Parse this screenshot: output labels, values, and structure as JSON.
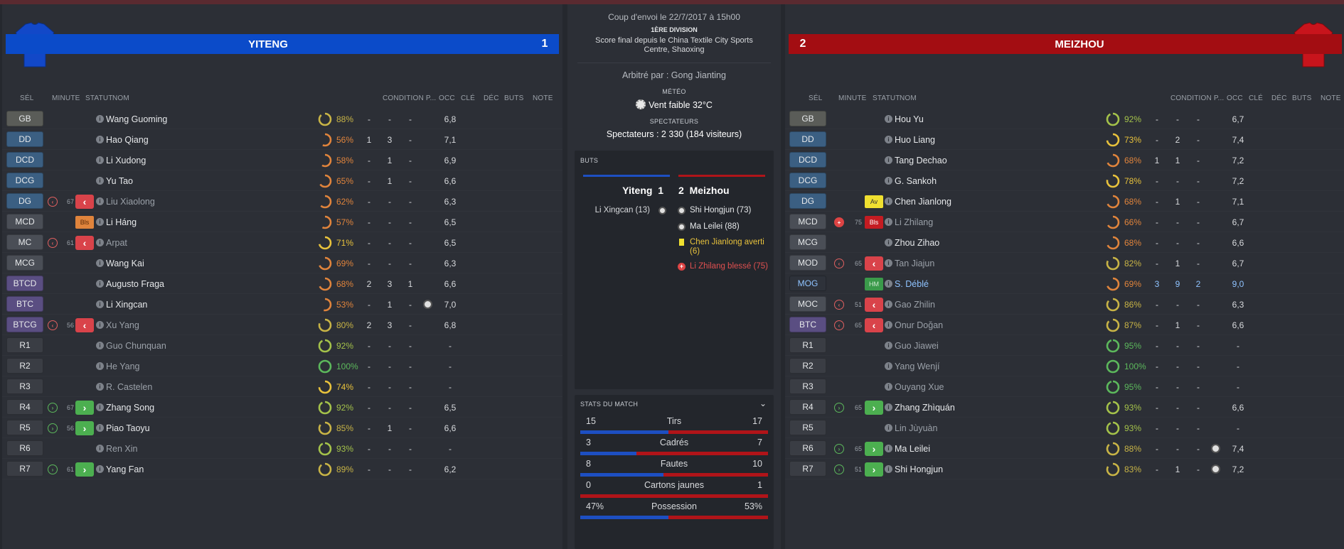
{
  "home": {
    "name": "YITENG",
    "score": "1",
    "banner_color": "#0b4bc9",
    "headers": {
      "sel": "SÉL",
      "minute": "MINUTE",
      "statut": "STATUT",
      "nom": "NOM",
      "condition": "CONDITION P...",
      "occ": "OCC",
      "cle": "CLÉ",
      "dec": "DÉC",
      "buts": "BUTS",
      "note": "NOTE"
    },
    "players": [
      {
        "pos": "GB",
        "pcolor": "#5a5c58",
        "name": "Wang Guoming",
        "cond": "88%",
        "ccolor": "#c8b446",
        "cfrac": 0.88,
        "occ": "-",
        "cle": "-",
        "dec": "-",
        "note": "6,8",
        "dim": false,
        "mark": "",
        "min": "",
        "status": "",
        "tag": "",
        "goal": false
      },
      {
        "pos": "DD",
        "pcolor": "#3b5f82",
        "name": "Hao Qiang",
        "cond": "56%",
        "ccolor": "#e0843c",
        "cfrac": 0.56,
        "occ": "1",
        "cle": "3",
        "dec": "-",
        "note": "7,1",
        "dim": false,
        "mark": "",
        "min": "",
        "status": "",
        "tag": "",
        "goal": false
      },
      {
        "pos": "DCD",
        "pcolor": "#3b5f82",
        "name": "Li Xudong",
        "cond": "58%",
        "ccolor": "#e0843c",
        "cfrac": 0.58,
        "occ": "-",
        "cle": "1",
        "dec": "-",
        "note": "6,9",
        "dim": false,
        "mark": "",
        "min": "",
        "status": "",
        "tag": "",
        "goal": false
      },
      {
        "pos": "DCG",
        "pcolor": "#3b5f82",
        "name": "Yu Tao",
        "cond": "65%",
        "ccolor": "#e0843c",
        "cfrac": 0.65,
        "occ": "-",
        "cle": "1",
        "dec": "-",
        "note": "6,6",
        "dim": false,
        "mark": "",
        "min": "",
        "status": "",
        "tag": "",
        "goal": false
      },
      {
        "pos": "DG",
        "pcolor": "#3b5f82",
        "name": "Liu Xiaolong",
        "cond": "62%",
        "ccolor": "#e0843c",
        "cfrac": 0.62,
        "occ": "-",
        "cle": "-",
        "dec": "-",
        "note": "6,3",
        "dim": true,
        "mark": "out",
        "min": "67",
        "status": "out",
        "tag": "",
        "goal": false
      },
      {
        "pos": "MCD",
        "pcolor": "#4a4e56",
        "name": "Li Háng",
        "cond": "57%",
        "ccolor": "#e0843c",
        "cfrac": 0.57,
        "occ": "-",
        "cle": "-",
        "dec": "-",
        "note": "6,5",
        "dim": false,
        "mark": "",
        "min": "",
        "status": "",
        "tag": "Bls",
        "goal": false
      },
      {
        "pos": "MC",
        "pcolor": "#4a4e56",
        "name": "Arpat",
        "cond": "71%",
        "ccolor": "#e8c23c",
        "cfrac": 0.71,
        "occ": "-",
        "cle": "-",
        "dec": "-",
        "note": "6,5",
        "dim": true,
        "mark": "out",
        "min": "61",
        "status": "out",
        "tag": "",
        "goal": false
      },
      {
        "pos": "MCG",
        "pcolor": "#4a4e56",
        "name": "Wang Kai",
        "cond": "69%",
        "ccolor": "#e0843c",
        "cfrac": 0.69,
        "occ": "-",
        "cle": "-",
        "dec": "-",
        "note": "6,3",
        "dim": false,
        "mark": "",
        "min": "",
        "status": "",
        "tag": "",
        "goal": false
      },
      {
        "pos": "BTCD",
        "pcolor": "#5a4e82",
        "name": "Augusto Fraga",
        "cond": "68%",
        "ccolor": "#e0843c",
        "cfrac": 0.68,
        "occ": "2",
        "cle": "3",
        "dec": "1",
        "note": "6,6",
        "dim": false,
        "mark": "",
        "min": "",
        "status": "",
        "tag": "",
        "goal": false
      },
      {
        "pos": "BTC",
        "pcolor": "#5a4e82",
        "name": "Li Xingcan",
        "cond": "53%",
        "ccolor": "#e0843c",
        "cfrac": 0.53,
        "occ": "-",
        "cle": "1",
        "dec": "-",
        "note": "7,0",
        "dim": false,
        "mark": "",
        "min": "",
        "status": "",
        "tag": "",
        "goal": true
      },
      {
        "pos": "BTCG",
        "pcolor": "#5a4e82",
        "name": "Xu Yang",
        "cond": "80%",
        "ccolor": "#c8b446",
        "cfrac": 0.8,
        "occ": "2",
        "cle": "3",
        "dec": "-",
        "note": "6,8",
        "dim": true,
        "mark": "out",
        "min": "56",
        "status": "out",
        "tag": "",
        "goal": false
      },
      {
        "pos": "R1",
        "pcolor": "#3a3d44",
        "name": "Guo Chunquan",
        "cond": "92%",
        "ccolor": "#a4c24a",
        "cfrac": 0.92,
        "occ": "-",
        "cle": "-",
        "dec": "-",
        "note": "-",
        "dim": true,
        "mark": "",
        "min": "",
        "status": "",
        "tag": "",
        "goal": false
      },
      {
        "pos": "R2",
        "pcolor": "#3a3d44",
        "name": "He Yang",
        "cond": "100%",
        "ccolor": "#5cb85c",
        "cfrac": 1.0,
        "occ": "-",
        "cle": "-",
        "dec": "-",
        "note": "-",
        "dim": true,
        "mark": "",
        "min": "",
        "status": "",
        "tag": "",
        "goal": false
      },
      {
        "pos": "R3",
        "pcolor": "#3a3d44",
        "name": "R. Castelen",
        "cond": "74%",
        "ccolor": "#e8c23c",
        "cfrac": 0.74,
        "occ": "-",
        "cle": "-",
        "dec": "-",
        "note": "-",
        "dim": true,
        "mark": "",
        "min": "",
        "status": "",
        "tag": "",
        "goal": false
      },
      {
        "pos": "R4",
        "pcolor": "#3a3d44",
        "name": "Zhang Song",
        "cond": "92%",
        "ccolor": "#a4c24a",
        "cfrac": 0.92,
        "occ": "-",
        "cle": "-",
        "dec": "-",
        "note": "6,5",
        "dim": false,
        "mark": "in",
        "min": "67",
        "status": "in",
        "tag": "",
        "goal": false
      },
      {
        "pos": "R5",
        "pcolor": "#3a3d44",
        "name": "Piao Taoyu",
        "cond": "85%",
        "ccolor": "#c8b446",
        "cfrac": 0.85,
        "occ": "-",
        "cle": "1",
        "dec": "-",
        "note": "6,6",
        "dim": false,
        "mark": "in",
        "min": "56",
        "status": "in",
        "tag": "",
        "goal": false
      },
      {
        "pos": "R6",
        "pcolor": "#3a3d44",
        "name": "Ren Xin",
        "cond": "93%",
        "ccolor": "#a4c24a",
        "cfrac": 0.93,
        "occ": "-",
        "cle": "-",
        "dec": "-",
        "note": "-",
        "dim": true,
        "mark": "",
        "min": "",
        "status": "",
        "tag": "",
        "goal": false
      },
      {
        "pos": "R7",
        "pcolor": "#3a3d44",
        "name": "Yang Fan",
        "cond": "89%",
        "ccolor": "#c8b446",
        "cfrac": 0.89,
        "occ": "-",
        "cle": "-",
        "dec": "-",
        "note": "6,2",
        "dim": false,
        "mark": "in",
        "min": "61",
        "status": "in",
        "tag": "",
        "goal": false
      }
    ]
  },
  "away": {
    "name": "MEIZHOU",
    "score": "2",
    "banner_color": "#a30d12",
    "headers": {
      "sel": "SÉL",
      "minute": "MINUTE",
      "statut": "STATUT",
      "nom": "NOM",
      "condition": "CONDITION P...",
      "occ": "OCC",
      "cle": "CLÉ",
      "dec": "DÉC",
      "buts": "BUTS",
      "note": "NOTE"
    },
    "players": [
      {
        "pos": "GB",
        "pcolor": "#5a5c58",
        "name": "Hou Yu",
        "cond": "92%",
        "ccolor": "#a4c24a",
        "cfrac": 0.92,
        "occ": "-",
        "cle": "-",
        "dec": "-",
        "note": "6,7",
        "dim": false,
        "mark": "",
        "min": "",
        "status": "",
        "tag": "",
        "goal": false,
        "hl": false
      },
      {
        "pos": "DD",
        "pcolor": "#3b5f82",
        "name": "Huo Liang",
        "cond": "73%",
        "ccolor": "#e8c23c",
        "cfrac": 0.73,
        "occ": "-",
        "cle": "2",
        "dec": "-",
        "note": "7,4",
        "dim": false,
        "mark": "",
        "min": "",
        "status": "",
        "tag": "",
        "goal": false,
        "hl": false
      },
      {
        "pos": "DCD",
        "pcolor": "#3b5f82",
        "name": "Tang Dechao",
        "cond": "68%",
        "ccolor": "#e0843c",
        "cfrac": 0.68,
        "occ": "1",
        "cle": "1",
        "dec": "-",
        "note": "7,2",
        "dim": false,
        "mark": "",
        "min": "",
        "status": "",
        "tag": "",
        "goal": false,
        "hl": false
      },
      {
        "pos": "DCG",
        "pcolor": "#3b5f82",
        "name": "G. Sankoh",
        "cond": "78%",
        "ccolor": "#e8c23c",
        "cfrac": 0.78,
        "occ": "-",
        "cle": "-",
        "dec": "-",
        "note": "7,2",
        "dim": false,
        "mark": "",
        "min": "",
        "status": "",
        "tag": "",
        "goal": false,
        "hl": false
      },
      {
        "pos": "DG",
        "pcolor": "#3b5f82",
        "name": "Chen Jianlong",
        "cond": "68%",
        "ccolor": "#e0843c",
        "cfrac": 0.68,
        "occ": "-",
        "cle": "1",
        "dec": "-",
        "note": "7,1",
        "dim": false,
        "mark": "",
        "min": "",
        "status": "",
        "tag": "Av",
        "goal": false,
        "hl": false
      },
      {
        "pos": "MCD",
        "pcolor": "#4a4e56",
        "name": "Li Zhilang",
        "cond": "66%",
        "ccolor": "#e0843c",
        "cfrac": 0.66,
        "occ": "-",
        "cle": "-",
        "dec": "-",
        "note": "6,7",
        "dim": true,
        "mark": "inj",
        "min": "75",
        "status": "",
        "tag": "Bls",
        "goal": false,
        "hl": false
      },
      {
        "pos": "MCG",
        "pcolor": "#4a4e56",
        "name": "Zhou Zihao",
        "cond": "68%",
        "ccolor": "#e0843c",
        "cfrac": 0.68,
        "occ": "-",
        "cle": "-",
        "dec": "-",
        "note": "6,6",
        "dim": false,
        "mark": "",
        "min": "",
        "status": "",
        "tag": "",
        "goal": false,
        "hl": false
      },
      {
        "pos": "MOD",
        "pcolor": "#4a4e56",
        "name": "Tan Jiajun",
        "cond": "82%",
        "ccolor": "#c8b446",
        "cfrac": 0.82,
        "occ": "-",
        "cle": "1",
        "dec": "-",
        "note": "6,7",
        "dim": true,
        "mark": "out",
        "min": "65",
        "status": "out",
        "tag": "",
        "goal": false,
        "hl": false
      },
      {
        "pos": "MOG",
        "pcolor": "#2e323a",
        "name": "S. Déblé",
        "cond": "69%",
        "ccolor": "#e0843c",
        "cfrac": 0.69,
        "occ": "3",
        "cle": "9",
        "dec": "2",
        "note": "9,0",
        "dim": false,
        "mark": "",
        "min": "",
        "status": "",
        "tag": "HM",
        "goal": false,
        "hl": true
      },
      {
        "pos": "MOC",
        "pcolor": "#4a4e56",
        "name": "Gao Zhilin",
        "cond": "86%",
        "ccolor": "#c8b446",
        "cfrac": 0.86,
        "occ": "-",
        "cle": "-",
        "dec": "-",
        "note": "6,3",
        "dim": true,
        "mark": "out",
        "min": "51",
        "status": "out",
        "tag": "",
        "goal": false,
        "hl": false
      },
      {
        "pos": "BTC",
        "pcolor": "#5a4e82",
        "name": "Onur Doğan",
        "cond": "87%",
        "ccolor": "#c8b446",
        "cfrac": 0.87,
        "occ": "-",
        "cle": "1",
        "dec": "-",
        "note": "6,6",
        "dim": true,
        "mark": "out",
        "min": "65",
        "status": "out",
        "tag": "",
        "goal": false,
        "hl": false
      },
      {
        "pos": "R1",
        "pcolor": "#3a3d44",
        "name": "Guo Jiawei",
        "cond": "95%",
        "ccolor": "#5cb85c",
        "cfrac": 0.95,
        "occ": "-",
        "cle": "-",
        "dec": "-",
        "note": "-",
        "dim": true,
        "mark": "",
        "min": "",
        "status": "",
        "tag": "",
        "goal": false,
        "hl": false
      },
      {
        "pos": "R2",
        "pcolor": "#3a3d44",
        "name": "Yang Wenjí",
        "cond": "100%",
        "ccolor": "#5cb85c",
        "cfrac": 1.0,
        "occ": "-",
        "cle": "-",
        "dec": "-",
        "note": "-",
        "dim": true,
        "mark": "",
        "min": "",
        "status": "",
        "tag": "",
        "goal": false,
        "hl": false
      },
      {
        "pos": "R3",
        "pcolor": "#3a3d44",
        "name": "Ouyang Xue",
        "cond": "95%",
        "ccolor": "#5cb85c",
        "cfrac": 0.95,
        "occ": "-",
        "cle": "-",
        "dec": "-",
        "note": "-",
        "dim": true,
        "mark": "",
        "min": "",
        "status": "",
        "tag": "",
        "goal": false,
        "hl": false
      },
      {
        "pos": "R4",
        "pcolor": "#3a3d44",
        "name": "Zhang Zhìquán",
        "cond": "93%",
        "ccolor": "#a4c24a",
        "cfrac": 0.93,
        "occ": "-",
        "cle": "-",
        "dec": "-",
        "note": "6,6",
        "dim": false,
        "mark": "in",
        "min": "65",
        "status": "in",
        "tag": "",
        "goal": false,
        "hl": false
      },
      {
        "pos": "R5",
        "pcolor": "#3a3d44",
        "name": "Lin Jùyuàn",
        "cond": "93%",
        "ccolor": "#a4c24a",
        "cfrac": 0.93,
        "occ": "-",
        "cle": "-",
        "dec": "-",
        "note": "-",
        "dim": true,
        "mark": "",
        "min": "",
        "status": "",
        "tag": "",
        "goal": false,
        "hl": false
      },
      {
        "pos": "R6",
        "pcolor": "#3a3d44",
        "name": "Ma Leilei",
        "cond": "88%",
        "ccolor": "#c8b446",
        "cfrac": 0.88,
        "occ": "-",
        "cle": "-",
        "dec": "-",
        "note": "7,4",
        "dim": false,
        "mark": "in",
        "min": "65",
        "status": "in",
        "tag": "",
        "goal": true,
        "hl": false
      },
      {
        "pos": "R7",
        "pcolor": "#3a3d44",
        "name": "Shi Hongjun",
        "cond": "83%",
        "ccolor": "#c8b446",
        "cfrac": 0.83,
        "occ": "-",
        "cle": "1",
        "dec": "-",
        "note": "7,2",
        "dim": false,
        "mark": "in",
        "min": "51",
        "status": "in",
        "tag": "",
        "goal": true,
        "hl": false
      }
    ]
  },
  "match": {
    "kickoff": "Coup d'envoi le 22/7/2017 à 15h00",
    "division": "1ÈRE DIVISION",
    "venue_line1": "Score final depuis le China Textile City Sports",
    "venue_line2": "Centre, Shaoxing",
    "referee": "Arbitré par : Gong Jianting",
    "weather_label": "MÉTÉO",
    "weather": "Vent faible 32°C",
    "spectators_label": "SPECTATEURS",
    "spectators": "Spectateurs : 2 330 (184 visiteurs)"
  },
  "goals_card": {
    "label": "BUTS",
    "home_name": "Yiteng",
    "home_score": "1",
    "away_score": "2",
    "away_name": "Meizhou",
    "home_events": [
      "Li Xingcan (13)"
    ],
    "away_events": [
      {
        "text": "Shi Hongjun (73)",
        "type": "goal"
      },
      {
        "text": "Ma Leilei (88)",
        "type": "goal"
      },
      {
        "text": "Chen Jianlong averti (6)",
        "type": "yellow"
      },
      {
        "text": "Li Zhilang blessé (75)",
        "type": "injury"
      }
    ]
  },
  "stats": {
    "label": "STATS DU MATCH",
    "rows": [
      {
        "label": "Tirs",
        "home": "15",
        "away": "17",
        "home_frac": 0.469
      },
      {
        "label": "Cadrés",
        "home": "3",
        "away": "7",
        "home_frac": 0.3
      },
      {
        "label": "Fautes",
        "home": "8",
        "away": "10",
        "home_frac": 0.444
      },
      {
        "label": "Cartons jaunes",
        "home": "0",
        "away": "1",
        "home_frac": 0.0
      },
      {
        "label": "Possession",
        "home": "47%",
        "away": "53%",
        "home_frac": 0.47
      }
    ]
  },
  "colors": {
    "home_blue": "#0b4bc9",
    "away_red": "#a30d12",
    "bar_blue": "#1d4fc2",
    "bar_red": "#b01419"
  }
}
